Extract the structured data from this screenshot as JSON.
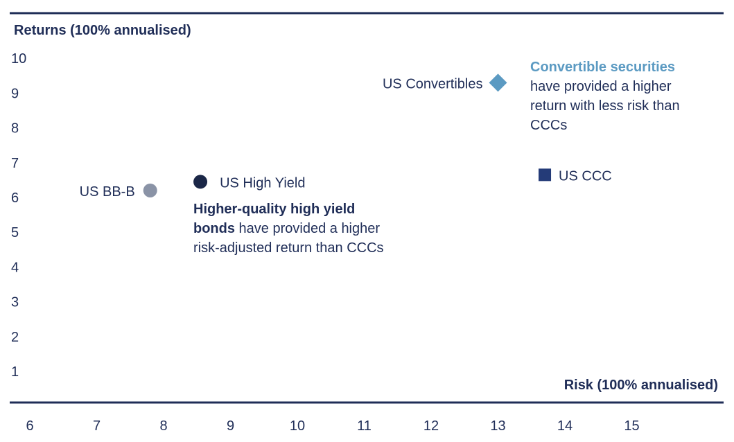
{
  "chart_data": {
    "type": "scatter",
    "title": "",
    "ylabel": "Returns (100% annualised)",
    "xlabel": "Risk (100% annualised)",
    "xlim": [
      6,
      16
    ],
    "ylim": [
      0,
      10
    ],
    "x_ticks": [
      "6",
      "7",
      "8",
      "9",
      "10",
      "11",
      "12",
      "13",
      "14",
      "15"
    ],
    "y_ticks": [
      "1",
      "2",
      "3",
      "4",
      "5",
      "6",
      "7",
      "8",
      "9",
      "10"
    ],
    "grid": false,
    "points": [
      {
        "name": "US BB-B",
        "x": 7.8,
        "y": 6.2,
        "marker": "circle",
        "color": "#8a93a6"
      },
      {
        "name": "US High Yield",
        "x": 8.55,
        "y": 6.45,
        "marker": "circle",
        "color": "#1b2747"
      },
      {
        "name": "US Convertibles",
        "x": 13.0,
        "y": 9.3,
        "marker": "diamond",
        "color": "#5b9ac2"
      },
      {
        "name": "US CCC",
        "x": 13.7,
        "y": 6.65,
        "marker": "square",
        "color": "#243b78"
      }
    ],
    "annotations": {
      "high_yield": {
        "bold": "Higher-quality high yield bonds",
        "lines": [
          "Higher-quality high yield",
          "bonds",
          " have provided a higher",
          "risk-adjusted return than CCCs"
        ]
      },
      "convertibles": {
        "heading": "Convertible securities",
        "lines": [
          "have provided a higher",
          "return with less risk than",
          "CCCs"
        ]
      }
    },
    "colors": {
      "axis": "#1f2d57",
      "text": "#1f2d57",
      "accent": "#5b9ac2"
    }
  }
}
